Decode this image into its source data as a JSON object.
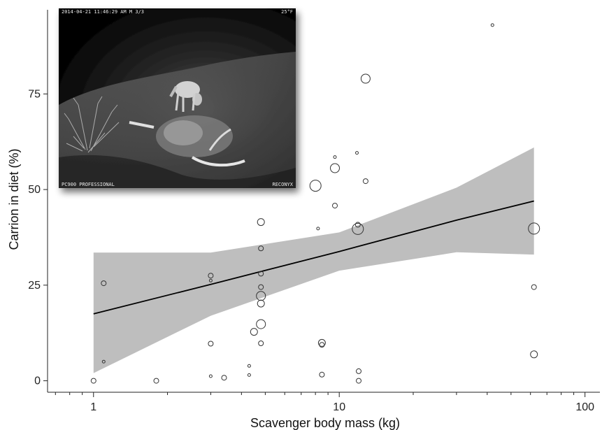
{
  "chart_data": {
    "type": "scatter",
    "xscale": "log",
    "xlim": [
      0.65,
      115
    ],
    "ylim": [
      -3,
      97
    ],
    "xticks": [
      1,
      10,
      100
    ],
    "xtick_labels": [
      "1",
      "10",
      "100"
    ],
    "yticks": [
      0,
      25,
      50,
      75
    ],
    "ytick_labels": [
      "0",
      "25",
      "50",
      "75"
    ],
    "xlabel": "Scavenger body mass (kg)",
    "ylabel": "Carrion in diet (%)",
    "grid": false,
    "points": [
      {
        "x": 1.0,
        "y": 0,
        "size": 1
      },
      {
        "x": 1.1,
        "y": 25.5,
        "size": 1
      },
      {
        "x": 1.1,
        "y": 5,
        "size": 0
      },
      {
        "x": 1.8,
        "y": 0,
        "size": 1
      },
      {
        "x": 3.0,
        "y": 27.5,
        "size": 1
      },
      {
        "x": 3.0,
        "y": 26.2,
        "size": 0
      },
      {
        "x": 3.0,
        "y": 9.7,
        "size": 1
      },
      {
        "x": 3.0,
        "y": 1.2,
        "size": 0
      },
      {
        "x": 3.4,
        "y": 0.8,
        "size": 1
      },
      {
        "x": 4.3,
        "y": 3.9,
        "size": 0
      },
      {
        "x": 4.3,
        "y": 1.5,
        "size": 0
      },
      {
        "x": 4.5,
        "y": 12.8,
        "size": 2
      },
      {
        "x": 4.8,
        "y": 41.5,
        "size": 2
      },
      {
        "x": 4.8,
        "y": 34.6,
        "size": 1
      },
      {
        "x": 4.8,
        "y": 28,
        "size": 1
      },
      {
        "x": 4.8,
        "y": 24.5,
        "size": 1
      },
      {
        "x": 4.8,
        "y": 22.2,
        "size": 3
      },
      {
        "x": 4.8,
        "y": 20.2,
        "size": 2
      },
      {
        "x": 4.8,
        "y": 14.8,
        "size": 3
      },
      {
        "x": 4.8,
        "y": 9.8,
        "size": 1
      },
      {
        "x": 8.0,
        "y": 51,
        "size": 4
      },
      {
        "x": 8.2,
        "y": 39.8,
        "size": 0
      },
      {
        "x": 8.5,
        "y": 9.9,
        "size": 2
      },
      {
        "x": 8.5,
        "y": 9.4,
        "size": 1
      },
      {
        "x": 8.5,
        "y": 1.6,
        "size": 1
      },
      {
        "x": 9.6,
        "y": 58.5,
        "size": 0
      },
      {
        "x": 9.6,
        "y": 55.6,
        "size": 3
      },
      {
        "x": 9.6,
        "y": 45.8,
        "size": 1
      },
      {
        "x": 11.8,
        "y": 59.6,
        "size": 0
      },
      {
        "x": 11.9,
        "y": 40.8,
        "size": 1
      },
      {
        "x": 11.9,
        "y": 39.7,
        "size": 4
      },
      {
        "x": 12.0,
        "y": 2.5,
        "size": 1
      },
      {
        "x": 12.0,
        "y": 0,
        "size": 1
      },
      {
        "x": 12.8,
        "y": 79,
        "size": 3
      },
      {
        "x": 12.8,
        "y": 52.2,
        "size": 1
      },
      {
        "x": 42.0,
        "y": 93,
        "size": 0
      },
      {
        "x": 62.0,
        "y": 39.8,
        "size": 4
      },
      {
        "x": 62.0,
        "y": 24.5,
        "size": 1
      },
      {
        "x": 62.0,
        "y": 6.9,
        "size": 2
      }
    ],
    "trend": {
      "x": [
        1,
        3,
        10,
        30,
        62
      ],
      "fit": [
        17.5,
        25.2,
        33.8,
        42,
        47
      ],
      "lower": [
        2,
        17,
        28.8,
        33.6,
        33
      ],
      "upper": [
        33.5,
        33.5,
        38.8,
        50.5,
        61
      ]
    },
    "colors": {
      "band": "#bebebe",
      "line": "#000000",
      "point_stroke": "#333333",
      "axis": "#222222"
    }
  },
  "inset_photo": {
    "timestamp": "2014-04-21 11:46:29 AM    M 3/3",
    "temperature": "25°F",
    "camera_model": "PC900 PROFESSIONAL",
    "brand": "RECONYX"
  }
}
